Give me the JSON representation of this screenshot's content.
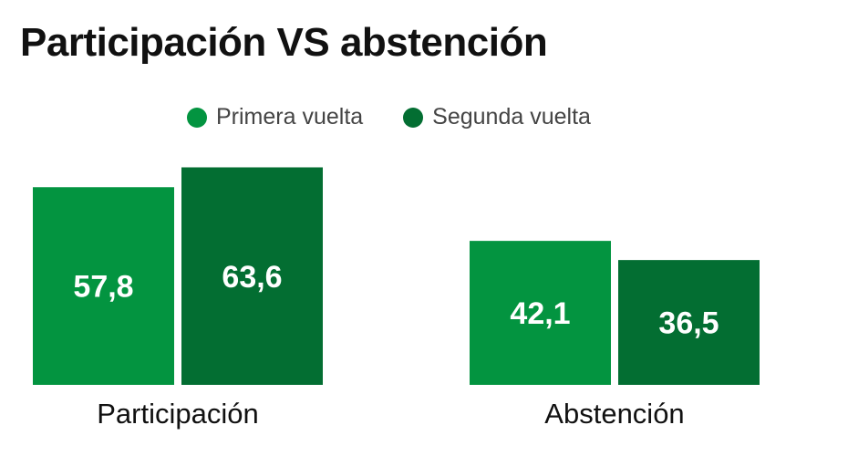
{
  "title": "Participación VS abstención",
  "legend": [
    {
      "label": "Primera vuelta",
      "color": "#039440"
    },
    {
      "label": "Segunda vuelta",
      "color": "#036e32"
    }
  ],
  "chart_data": {
    "type": "bar",
    "title": "Participación VS abstención",
    "categories": [
      "Participación",
      "Abstención"
    ],
    "series": [
      {
        "name": "Primera vuelta",
        "color": "#039440",
        "values": [
          57.8,
          42.1
        ],
        "labels": [
          "57,8",
          "42,1"
        ]
      },
      {
        "name": "Segunda vuelta",
        "color": "#036e32",
        "values": [
          63.6,
          36.5
        ],
        "labels": [
          "63,6",
          "36,5"
        ]
      }
    ],
    "ylim": [
      0,
      100
    ],
    "grid": false,
    "legend_position": "top"
  }
}
